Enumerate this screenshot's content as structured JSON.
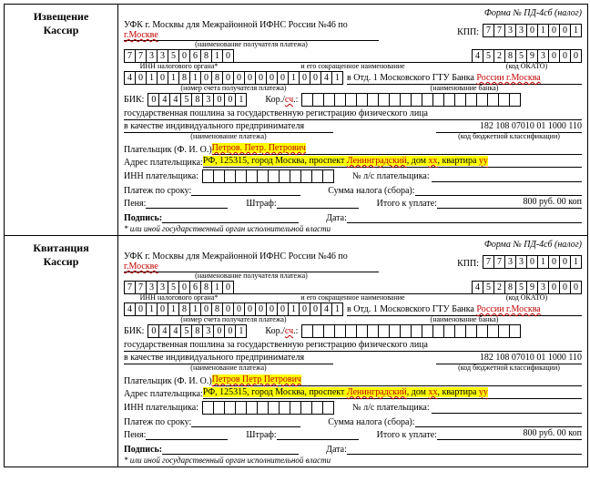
{
  "form_number": "Форма № ПД-4сб (налог)",
  "sections": [
    {
      "title1": "Извещение",
      "title2": "Кассир"
    },
    {
      "title1": "Квитанция",
      "title2": "Кассир"
    }
  ],
  "recipient_prefix": "УФК г. Москвы для Межрайонной ИФНС России №46 по ",
  "recipient_red": "г.Москве",
  "recipient_sub": "(наименование получателя платежа)",
  "kpp_label": "КПП:",
  "kpp": [
    "7",
    "7",
    "3",
    "3",
    "0",
    "1",
    "0",
    "0",
    "1"
  ],
  "inn_org": [
    "7",
    "7",
    "3",
    "3",
    "5",
    "0",
    "6",
    "8",
    "1",
    "0"
  ],
  "inn_org_sub": "ИНН налогового органа*",
  "short_name_sub": "и его сокращенное наименование",
  "okato": [
    "4",
    "5",
    "2",
    "8",
    "5",
    "9",
    "3",
    "0",
    "0",
    "0"
  ],
  "okato_sub": "(код ОКАТО)",
  "account": [
    "4",
    "0",
    "1",
    "0",
    "1",
    "8",
    "1",
    "0",
    "8",
    "0",
    "0",
    "0",
    "0",
    "0",
    "0",
    "1",
    "0",
    "0",
    "4",
    "1"
  ],
  "account_sub": "(номер счета получателя платежа)",
  "bank_prefix": "в   Отд. 1 Московского ГТУ Банка ",
  "bank_red": "России г.Москва",
  "bank_sub": "(наименование банка)",
  "bik_label": "БИК:",
  "bik": [
    "0",
    "4",
    "4",
    "5",
    "8",
    "3",
    "0",
    "0",
    "1"
  ],
  "kor_label": "Кор./",
  "kor_red": "сч",
  "kor_after": ".:",
  "kor_boxes_count": 20,
  "purpose1": "государственная пошлина за государственную регистрацию физического лица",
  "purpose2": "в качестве индивидуального предпринимателя",
  "purpose_sub": "(наименование платежа)",
  "kbk": "182 108 07010 01 1000 110",
  "kbk_sub": "(код бюджетной классификации)",
  "payer_label": "Плательщик (Ф. И. О.) ",
  "payer_red": "Петров  Петр  Петрович",
  "payer_red1": "Петров. Петр. Петрович",
  "addr_label": "Адрес плательщика: ",
  "addr_part1": "РФ, 125315, город Москва, проспект ",
  "addr_red1": "Ленинградский",
  "addr_part2": ", дом ",
  "addr_red2": "xx",
  "addr_part3": ", квартира ",
  "addr_red3": "yy",
  "inn_payer_label": "ИНН плательщика:",
  "inn_payer_boxes_count": 12,
  "ls_label": "№ л/с плательщика:",
  "srok_label": "Платеж по сроку:",
  "tax_label": "Сумма налога (сбора):",
  "penya_label": "Пеня:",
  "shtraf_label": "Штраф:",
  "itogo_label": "Итого к уплате:",
  "itogo_value": "800 руб. 00 коп",
  "sign_label": "Подпись:",
  "date_label": "Дата:",
  "note": "* или иной государственный орган исполнительной власти"
}
